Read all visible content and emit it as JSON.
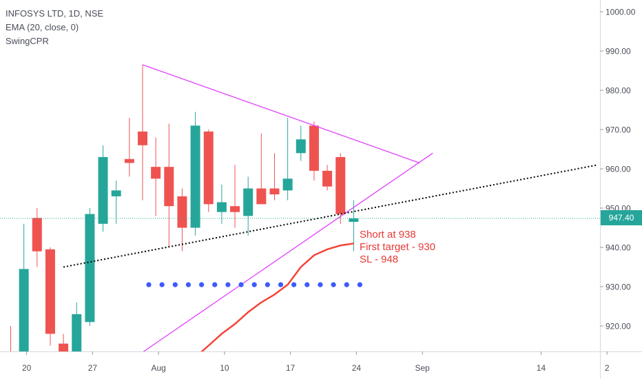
{
  "legend": {
    "title": "INFOSYS LTD, 1D, NSE",
    "indicator1": "EMA (20, close, 0)",
    "indicator2": "SwingCPR"
  },
  "annotation": {
    "line1": "Short at 938",
    "line2": "First target - 930",
    "line3": "SL - 948"
  },
  "last_price_label": "947.40",
  "colors": {
    "up": "#26a69a",
    "down": "#ef5350",
    "trendline": "#e040fb",
    "ema": "#f44336",
    "cpr_dots": "#3d5afe",
    "dotted_line": "#000000",
    "price_line": "#26a69a"
  },
  "chart_data": {
    "type": "candlestick",
    "title": "INFOSYS LTD, 1D, NSE",
    "ylim": [
      913,
      1003
    ],
    "y_ticks": [
      "920.00",
      "930.00",
      "940.00",
      "950.00",
      "960.00",
      "970.00",
      "980.00",
      "990.00",
      "1000.00"
    ],
    "x_tick_labels": [
      "20",
      "27",
      "Aug",
      "10",
      "17",
      "24",
      "Sep",
      "14",
      "2"
    ],
    "candles": [
      {
        "i": 0,
        "o": 912,
        "h": 920,
        "l": 905,
        "c": 906
      },
      {
        "i": 1,
        "o": 912,
        "h": 946,
        "l": 910,
        "c": 934.5
      },
      {
        "i": 2,
        "o": 947.5,
        "h": 950,
        "l": 935,
        "c": 939
      },
      {
        "i": 3,
        "o": 939.5,
        "h": 940,
        "l": 915,
        "c": 918
      },
      {
        "i": 4,
        "o": 915.5,
        "h": 918,
        "l": 905,
        "c": 907
      },
      {
        "i": 5,
        "o": 910,
        "h": 926,
        "l": 908,
        "c": 923
      },
      {
        "i": 6,
        "o": 921,
        "h": 950,
        "l": 920,
        "c": 948.5
      },
      {
        "i": 7,
        "o": 946,
        "h": 966,
        "l": 944,
        "c": 963
      },
      {
        "i": 8,
        "o": 953,
        "h": 957,
        "l": 946,
        "c": 954.5
      },
      {
        "i": 9,
        "o": 962.5,
        "h": 973,
        "l": 958,
        "c": 961.5
      },
      {
        "i": 10,
        "o": 969.5,
        "h": 986.5,
        "l": 952,
        "c": 966
      },
      {
        "i": 11,
        "o": 960.5,
        "h": 968,
        "l": 948,
        "c": 957.5
      },
      {
        "i": 12,
        "o": 960.5,
        "h": 971.5,
        "l": 940,
        "c": 950.5
      },
      {
        "i": 13,
        "o": 953,
        "h": 955,
        "l": 939,
        "c": 945
      },
      {
        "i": 14,
        "o": 945,
        "h": 974.5,
        "l": 943,
        "c": 971
      },
      {
        "i": 15,
        "o": 969.5,
        "h": 970,
        "l": 949,
        "c": 951
      },
      {
        "i": 16,
        "o": 949,
        "h": 956,
        "l": 946,
        "c": 951.5
      },
      {
        "i": 17,
        "o": 950.5,
        "h": 961,
        "l": 945,
        "c": 949
      },
      {
        "i": 18,
        "o": 948,
        "h": 958,
        "l": 943,
        "c": 955
      },
      {
        "i": 19,
        "o": 955,
        "h": 969,
        "l": 951,
        "c": 951
      },
      {
        "i": 20,
        "o": 955,
        "h": 964,
        "l": 952,
        "c": 953.5
      },
      {
        "i": 21,
        "o": 954.5,
        "h": 973,
        "l": 952,
        "c": 957.5
      },
      {
        "i": 22,
        "o": 964,
        "h": 971,
        "l": 962,
        "c": 967.5
      },
      {
        "i": 23,
        "o": 971,
        "h": 972,
        "l": 957,
        "c": 959.5
      },
      {
        "i": 24,
        "o": 959.5,
        "h": 961,
        "l": 954.5,
        "c": 955.5
      },
      {
        "i": 25,
        "o": 963,
        "h": 964,
        "l": 946,
        "c": 948.5
      },
      {
        "i": 26,
        "o": 946.5,
        "h": 952,
        "l": 939,
        "c": 947.4
      }
    ],
    "ema_20": [
      {
        "i": 14,
        "v": 912
      },
      {
        "i": 15,
        "v": 915
      },
      {
        "i": 16,
        "v": 918
      },
      {
        "i": 17,
        "v": 920.5
      },
      {
        "i": 18,
        "v": 923.5
      },
      {
        "i": 19,
        "v": 926
      },
      {
        "i": 20,
        "v": 928
      },
      {
        "i": 21,
        "v": 930.5
      },
      {
        "i": 22,
        "v": 935
      },
      {
        "i": 23,
        "v": 938
      },
      {
        "i": 24,
        "v": 939.5
      },
      {
        "i": 25,
        "v": 940.5
      },
      {
        "i": 26,
        "v": 941
      }
    ],
    "cpr_level": 930.5,
    "cpr_range": [
      10,
      26
    ],
    "trendlines": [
      {
        "name": "upper",
        "from": {
          "i": 10,
          "v": 986.5
        },
        "to": {
          "i": 31,
          "v": 961.5
        }
      },
      {
        "name": "lower",
        "from": {
          "i": 9,
          "v": 911
        },
        "to": {
          "i": 32,
          "v": 964
        }
      },
      {
        "name": "dotted",
        "from": {
          "i": 4,
          "v": 935
        },
        "to": {
          "i": 44.5,
          "v": 961
        }
      }
    ],
    "last_price": 947.4
  }
}
